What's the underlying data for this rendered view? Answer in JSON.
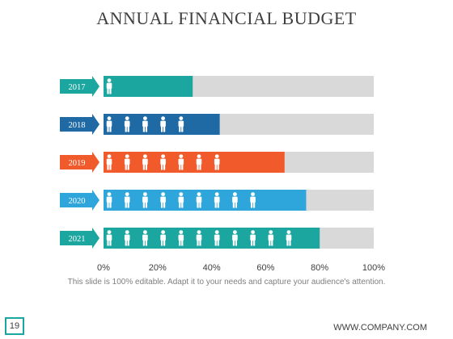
{
  "title": "ANNUAL FINANCIAL BUDGET",
  "caption": "This slide is 100% editable. Adapt it to your needs and capture your audience's attention.",
  "page_number": "19",
  "company": "WWW.COMPANY.COM",
  "chart_data": {
    "type": "bar",
    "orientation": "horizontal",
    "categories": [
      "2017",
      "2018",
      "2019",
      "2020",
      "2021"
    ],
    "values": [
      33,
      43,
      67,
      75,
      80
    ],
    "icon_counts": [
      1,
      5,
      7,
      9,
      11
    ],
    "colors": [
      "#1ca6a0",
      "#1f6aa5",
      "#f15a2b",
      "#2ea6dc",
      "#1ca6a0"
    ],
    "track_color": "#d9d9d9",
    "xlim": [
      0,
      100
    ],
    "ticks": [
      "0%",
      "20%",
      "40%",
      "60%",
      "80%",
      "100%"
    ],
    "icon": "person-icon"
  }
}
